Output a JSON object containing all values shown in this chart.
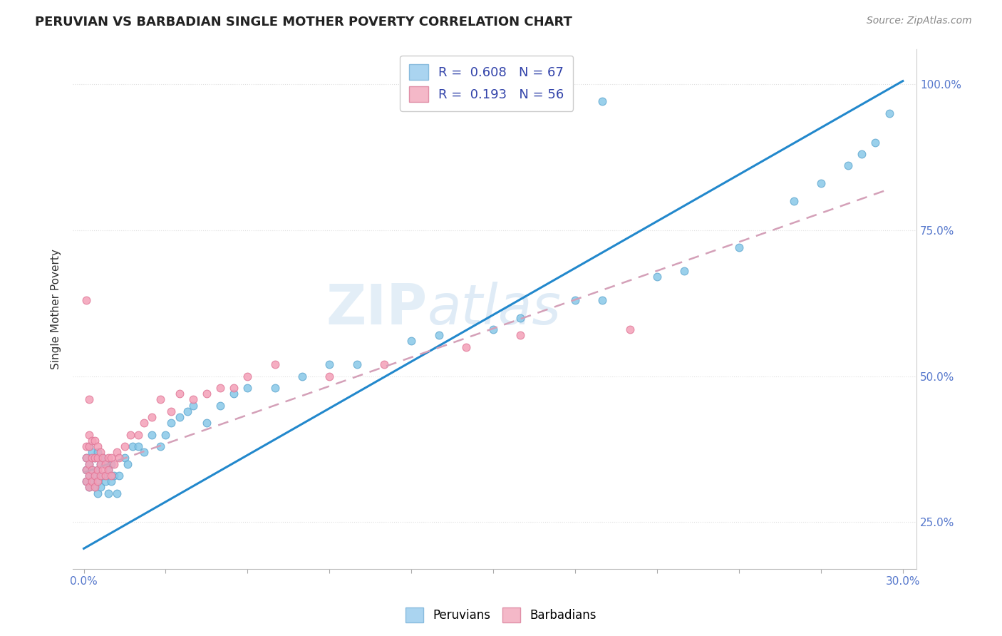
{
  "title": "PERUVIAN VS BARBADIAN SINGLE MOTHER POVERTY CORRELATION CHART",
  "source": "Source: ZipAtlas.com",
  "ylabel": "Single Mother Poverty",
  "legend_peruvians": "Peruvians",
  "legend_barbadians": "Barbadians",
  "R_peruvians": "0.608",
  "N_peruvians": "67",
  "R_barbadians": "0.193",
  "N_barbadians": "56",
  "blue_scatter_color": "#88c8e8",
  "blue_edge_color": "#60a8d0",
  "pink_scatter_color": "#f4a0b8",
  "pink_edge_color": "#e07898",
  "blue_line_color": "#2288cc",
  "pink_line_color": "#d4a0b8",
  "watermark": "ZIPatlas",
  "watermark_color": "#cce0f0",
  "grid_color": "#e0e0e0",
  "tick_color": "#5577cc",
  "title_color": "#222222",
  "source_color": "#888888",
  "ylabel_color": "#333333",
  "legend_text_color": "#3344aa",
  "xlim": [
    0.0,
    0.3
  ],
  "ylim": [
    0.17,
    1.06
  ],
  "blue_line_x0": 0.0,
  "blue_line_y0": 0.205,
  "blue_line_x1": 0.3,
  "blue_line_y1": 1.005,
  "pink_line_x0": 0.0,
  "pink_line_y0": 0.335,
  "pink_line_x1": 0.295,
  "pink_line_y1": 0.82,
  "peru_x": [
    0.001,
    0.001,
    0.001,
    0.002,
    0.002,
    0.002,
    0.002,
    0.003,
    0.003,
    0.003,
    0.004,
    0.004,
    0.004,
    0.005,
    0.005,
    0.005,
    0.005,
    0.006,
    0.006,
    0.007,
    0.007,
    0.008,
    0.008,
    0.009,
    0.009,
    0.01,
    0.01,
    0.011,
    0.012,
    0.013,
    0.015,
    0.016,
    0.018,
    0.02,
    0.022,
    0.025,
    0.028,
    0.03,
    0.032,
    0.035,
    0.038,
    0.04,
    0.045,
    0.05,
    0.055,
    0.06,
    0.07,
    0.08,
    0.09,
    0.1,
    0.12,
    0.13,
    0.15,
    0.16,
    0.18,
    0.19,
    0.21,
    0.22,
    0.24,
    0.26,
    0.27,
    0.28,
    0.285,
    0.29,
    0.295,
    0.17,
    0.19
  ],
  "peru_y": [
    0.32,
    0.34,
    0.36,
    0.31,
    0.33,
    0.35,
    0.38,
    0.32,
    0.34,
    0.37,
    0.31,
    0.33,
    0.36,
    0.3,
    0.32,
    0.34,
    0.37,
    0.31,
    0.35,
    0.33,
    0.36,
    0.32,
    0.35,
    0.3,
    0.34,
    0.32,
    0.35,
    0.33,
    0.3,
    0.33,
    0.36,
    0.35,
    0.38,
    0.38,
    0.37,
    0.4,
    0.38,
    0.4,
    0.42,
    0.43,
    0.44,
    0.45,
    0.42,
    0.45,
    0.47,
    0.48,
    0.48,
    0.5,
    0.52,
    0.52,
    0.56,
    0.57,
    0.58,
    0.6,
    0.63,
    0.63,
    0.67,
    0.68,
    0.72,
    0.8,
    0.83,
    0.86,
    0.88,
    0.9,
    0.95,
    0.97,
    0.97
  ],
  "barb_x": [
    0.001,
    0.001,
    0.001,
    0.001,
    0.001,
    0.002,
    0.002,
    0.002,
    0.002,
    0.002,
    0.002,
    0.003,
    0.003,
    0.003,
    0.003,
    0.004,
    0.004,
    0.004,
    0.004,
    0.005,
    0.005,
    0.005,
    0.005,
    0.006,
    0.006,
    0.006,
    0.007,
    0.007,
    0.008,
    0.008,
    0.009,
    0.009,
    0.01,
    0.01,
    0.011,
    0.012,
    0.013,
    0.015,
    0.017,
    0.02,
    0.022,
    0.025,
    0.028,
    0.032,
    0.035,
    0.04,
    0.045,
    0.05,
    0.055,
    0.06,
    0.07,
    0.09,
    0.11,
    0.14,
    0.16,
    0.2
  ],
  "barb_y": [
    0.32,
    0.34,
    0.36,
    0.38,
    0.63,
    0.31,
    0.33,
    0.35,
    0.38,
    0.4,
    0.46,
    0.32,
    0.34,
    0.36,
    0.39,
    0.31,
    0.33,
    0.36,
    0.39,
    0.32,
    0.34,
    0.36,
    0.38,
    0.33,
    0.35,
    0.37,
    0.34,
    0.36,
    0.33,
    0.35,
    0.34,
    0.36,
    0.33,
    0.36,
    0.35,
    0.37,
    0.36,
    0.38,
    0.4,
    0.4,
    0.42,
    0.43,
    0.46,
    0.44,
    0.47,
    0.46,
    0.47,
    0.48,
    0.48,
    0.5,
    0.52,
    0.5,
    0.52,
    0.55,
    0.57,
    0.58
  ],
  "barb_outlier_x": [
    0.001
  ],
  "barb_outlier_y": [
    0.63
  ]
}
